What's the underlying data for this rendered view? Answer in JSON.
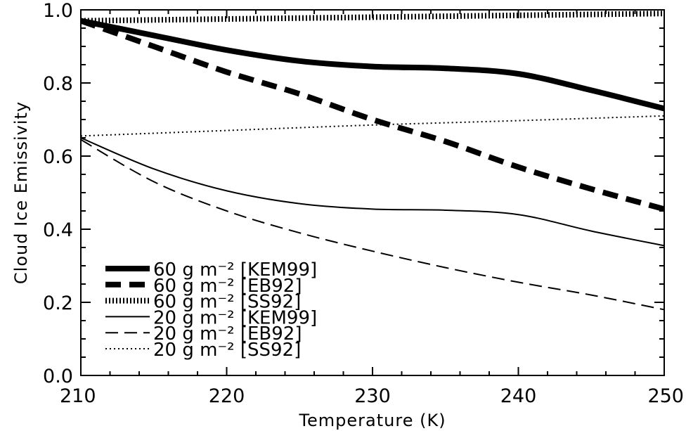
{
  "chart_data": {
    "type": "line",
    "title": "",
    "xlabel": "Temperature (K)",
    "ylabel": "Cloud Ice Emissivity",
    "xlim": [
      210,
      250
    ],
    "ylim": [
      0.0,
      1.0
    ],
    "xticks": [
      210,
      220,
      230,
      240,
      250
    ],
    "xtick_labels": [
      "210",
      "220",
      "230",
      "240",
      "250"
    ],
    "yticks": [
      0.0,
      0.2,
      0.4,
      0.6,
      0.8,
      1.0
    ],
    "ytick_labels": [
      "0.0",
      "0.2",
      "0.4",
      "0.6",
      "0.8",
      "1.0"
    ],
    "grid": false,
    "legend_position": "bottom-left",
    "legend_entries": [
      "60 g m⁻² [KEM99]",
      "60 g m⁻² [EB92]",
      "60 g m⁻² [SS92]",
      "20 g m⁻² [KEM99]",
      "20 g m⁻² [EB92]",
      "20 g m⁻² [SS92]"
    ],
    "series": [
      {
        "name": "60 g m⁻² [KEM99]",
        "style": "thick-solid",
        "x": [
          210,
          215,
          220,
          225,
          230,
          235,
          240,
          245,
          250
        ],
        "y": [
          0.97,
          0.93,
          0.89,
          0.86,
          0.845,
          0.84,
          0.825,
          0.78,
          0.73
        ]
      },
      {
        "name": "60 g m⁻² [EB92]",
        "style": "thick-dashed",
        "x": [
          210,
          215,
          220,
          225,
          230,
          235,
          240,
          245,
          250
        ],
        "y": [
          0.97,
          0.9,
          0.83,
          0.77,
          0.7,
          0.64,
          0.57,
          0.51,
          0.455
        ]
      },
      {
        "name": "60 g m⁻² [SS92]",
        "style": "thick-dotted",
        "x": [
          210,
          220,
          230,
          240,
          250
        ],
        "y": [
          0.97,
          0.975,
          0.98,
          0.985,
          0.99
        ]
      },
      {
        "name": "20 g m⁻² [KEM99]",
        "style": "thin-solid",
        "x": [
          210,
          215,
          220,
          225,
          230,
          235,
          240,
          245,
          250
        ],
        "y": [
          0.65,
          0.565,
          0.505,
          0.47,
          0.455,
          0.452,
          0.44,
          0.395,
          0.355
        ]
      },
      {
        "name": "20 g m⁻² [EB92]",
        "style": "thin-dashed",
        "x": [
          210,
          215,
          220,
          225,
          230,
          235,
          240,
          245,
          250
        ],
        "y": [
          0.645,
          0.53,
          0.45,
          0.39,
          0.34,
          0.295,
          0.255,
          0.22,
          0.18
        ]
      },
      {
        "name": "20 g m⁻² [SS92]",
        "style": "thin-dotted",
        "x": [
          210,
          220,
          230,
          240,
          250
        ],
        "y": [
          0.655,
          0.67,
          0.685,
          0.697,
          0.71
        ]
      }
    ]
  }
}
